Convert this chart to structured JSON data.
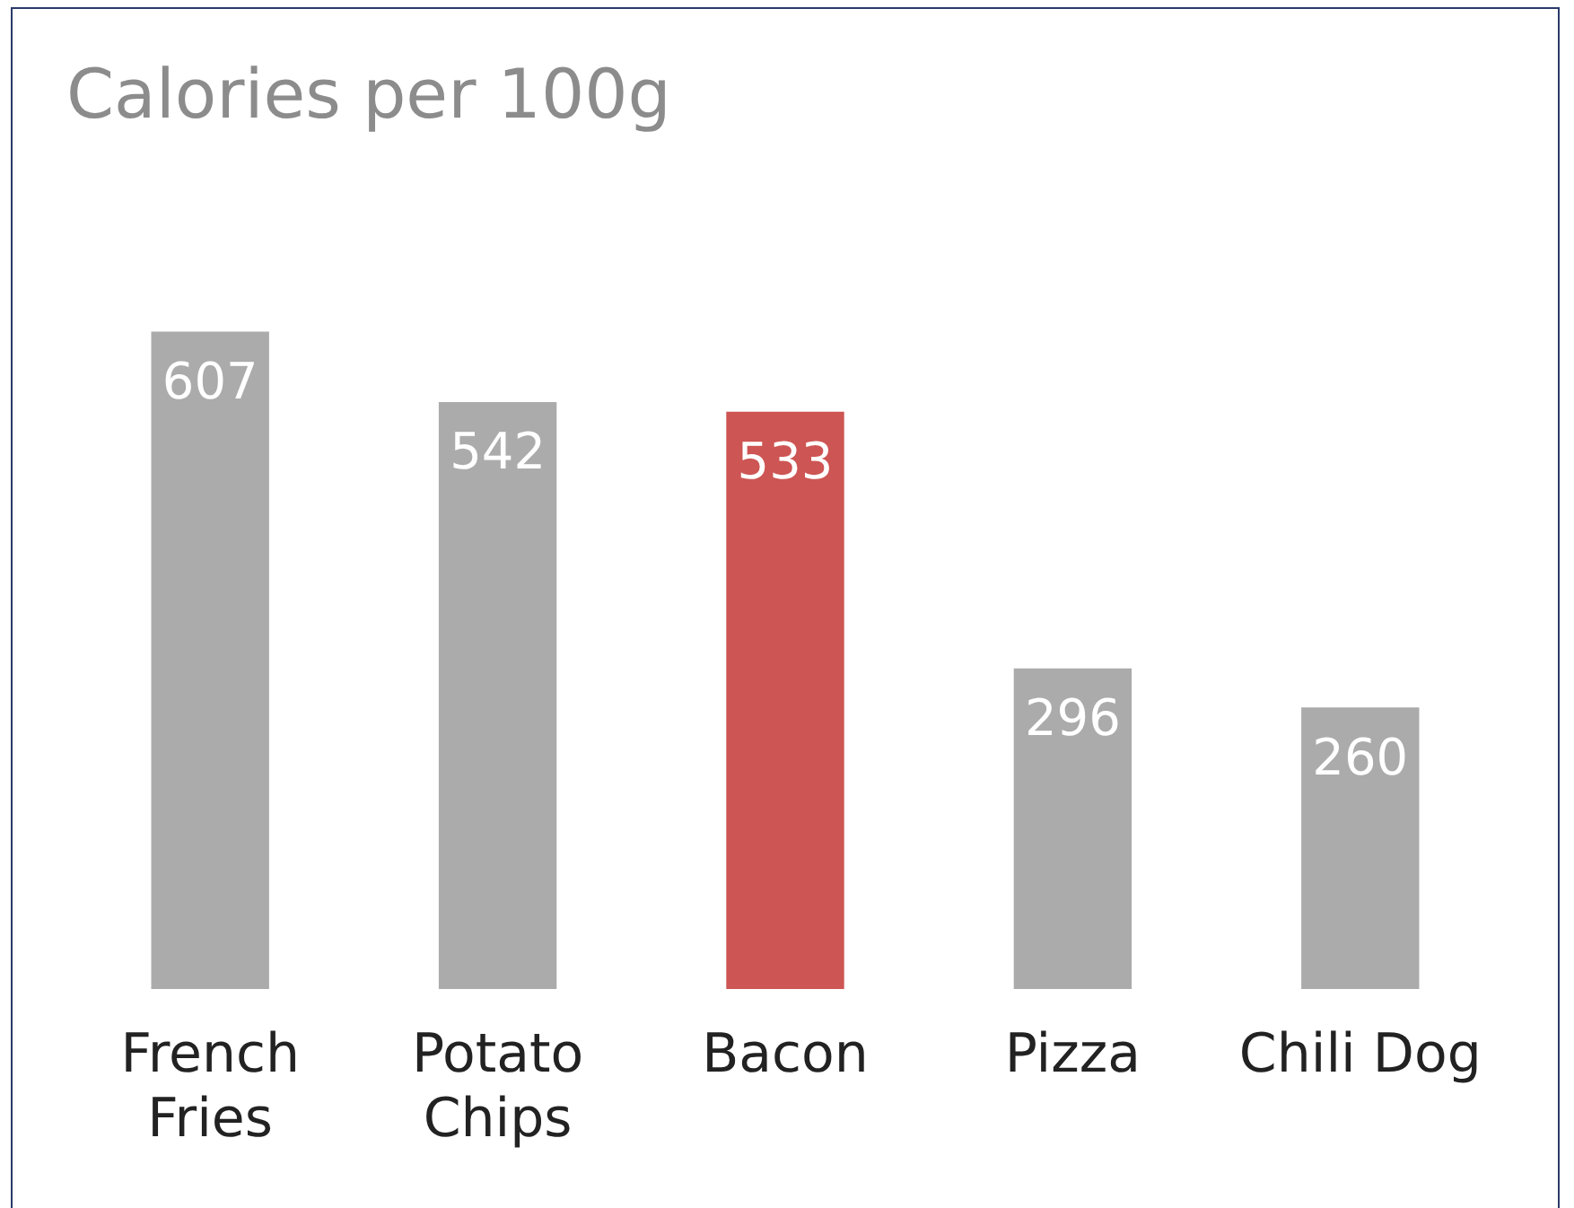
{
  "chart_data": {
    "type": "bar",
    "title": "Calories per 100g",
    "categories": [
      "French Fries",
      "Potato Chips",
      "Bacon",
      "Pizza",
      "Chili Dog"
    ],
    "values": [
      607,
      542,
      533,
      296,
      260
    ],
    "colors": [
      "#ababab",
      "#ababab",
      "#cd5553",
      "#ababab",
      "#ababab"
    ],
    "data_labels": true,
    "grid": false,
    "legend": false
  }
}
